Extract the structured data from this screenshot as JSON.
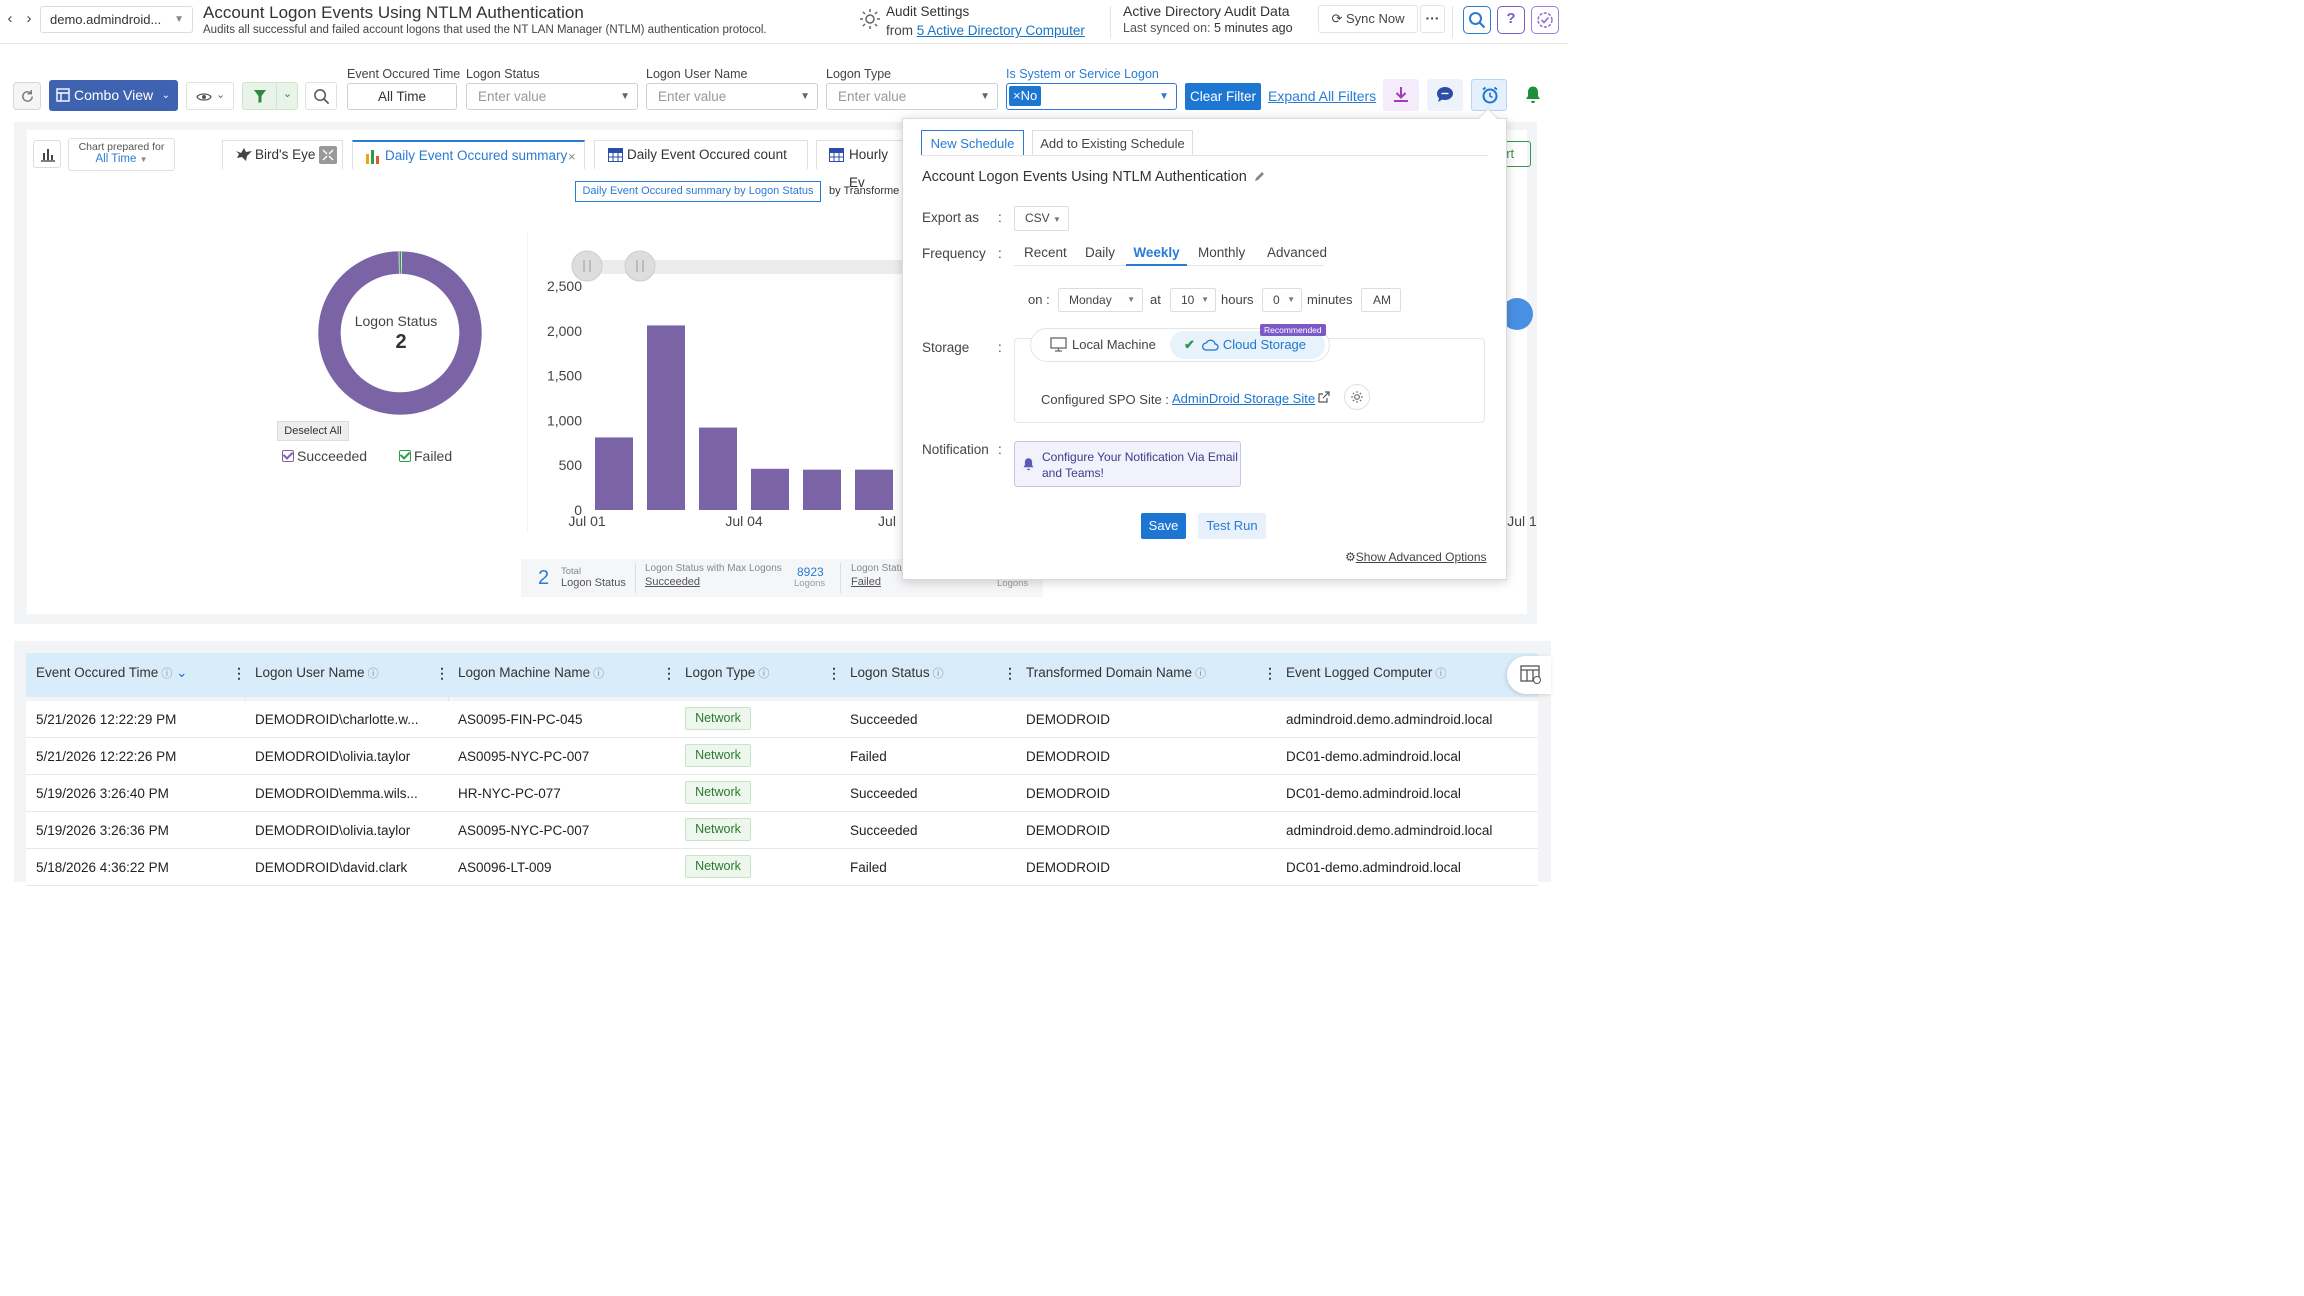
{
  "header": {
    "domain": "demo.admindroid...",
    "title": "Account Logon Events Using NTLM Authentication",
    "subtitle": "Audits all successful and failed account logons that used the NT LAN Manager (NTLM) authentication protocol.",
    "audit_settings_label": "Audit Settings",
    "audit_from_prefix": "from",
    "audit_from_link": "5 Active Directory Computer",
    "ad_audit_title": "Active Directory Audit Data",
    "last_synced_label": "Last synced on:",
    "last_synced_value": "5 minutes ago",
    "sync_now": "Sync Now",
    "more": "···",
    "help": "?"
  },
  "toolbar": {
    "combo_view": "Combo View",
    "filters": [
      {
        "label": "Event Occured Time",
        "value": "All Time"
      },
      {
        "label": "Logon Status",
        "placeholder": "Enter value"
      },
      {
        "label": "Logon User Name",
        "placeholder": "Enter value"
      },
      {
        "label": "Logon Type",
        "placeholder": "Enter value"
      },
      {
        "label": "Is System or Service Logon",
        "chip": "No"
      }
    ],
    "clear_filter": "Clear Filter",
    "expand_all": "Expand All Filters"
  },
  "chart_area": {
    "prepared_for_label": "Chart prepared for",
    "prepared_for_value": "All Time",
    "tabs": [
      "Bird's Eye",
      "Daily Event Occured summary",
      "Daily Event Occured count",
      "Hourly Ev"
    ],
    "subtab_active": "Daily Event Occured summary by Logon Status",
    "subtab_next": "by Transforme",
    "side_button": "art",
    "donut_title": "Logon Status",
    "donut_value": "2",
    "deselect_all": "Deselect All",
    "legend": [
      {
        "label": "Succeeded",
        "color": "#7b64a6"
      },
      {
        "label": "Failed",
        "color": "#2e9b4b"
      }
    ],
    "stats": {
      "total_num": "2",
      "total_small": "Total",
      "total_label": "Logon Status",
      "max_label": "Logon Status with Max Logons",
      "max_value": "Succeeded",
      "max_count": "8923",
      "max_unit": "Logons",
      "min_label": "Logon Statu",
      "min_value": "Failed",
      "min_unit": "Logons"
    }
  },
  "chart_data": [
    {
      "type": "pie",
      "title": "Logon Status",
      "categories": [
        "Succeeded",
        "Failed"
      ],
      "values": [
        8923,
        45
      ],
      "colors": [
        "#7b64a6",
        "#2e9b4b"
      ]
    },
    {
      "type": "bar",
      "categories": [
        "Jul 01",
        "Jul 02",
        "Jul 03",
        "Jul 04",
        "Jul 05",
        "Jul 06",
        "Jul 07"
      ],
      "values": [
        810,
        2060,
        920,
        460,
        450,
        450,
        430
      ],
      "ylim": [
        0,
        2500
      ],
      "yticks": [
        "0",
        "500",
        "1,000",
        "1,500",
        "2,000",
        "2,500"
      ],
      "xticks": [
        "Jul 01",
        "Jul 04",
        "Jul",
        "Jul 1"
      ],
      "color": "#7b64a6"
    }
  ],
  "schedule": {
    "tabs": [
      "New Schedule",
      "Add to Existing Schedule"
    ],
    "report_title": "Account Logon Events Using NTLM Authentication",
    "export_label": "Export as",
    "export_value": "CSV",
    "frequency_label": "Frequency",
    "frequencies": [
      "Recent",
      "Daily",
      "Weekly",
      "Monthly",
      "Advanced"
    ],
    "on_label": "on :",
    "day": "Monday",
    "at_label": "at",
    "hour": "10",
    "hours_label": "hours",
    "minute": "0",
    "minutes_label": "minutes",
    "ampm": "AM",
    "storage_label": "Storage",
    "local_machine": "Local Machine",
    "cloud_storage": "Cloud Storage",
    "recommended": "Recommended",
    "spo_label": "Configured SPO Site :",
    "spo_link": "AdminDroid Storage Site",
    "notification_label": "Notification",
    "notification_text": "Configure Your Notification Via Email and Teams!",
    "save": "Save",
    "test_run": "Test Run",
    "advanced": "Show Advanced Options",
    "colon": ":"
  },
  "table": {
    "columns": [
      "Event Occured Time",
      "Logon User Name",
      "Logon Machine Name",
      "Logon Type",
      "Logon Status",
      "Transformed Domain Name",
      "Event Logged Computer"
    ],
    "rows": [
      [
        "5/21/2026 12:22:29 PM",
        "DEMODROID\\charlotte.w...",
        "AS0095-FIN-PC-045",
        "Network",
        "Succeeded",
        "DEMODROID",
        "admindroid.demo.admindroid.local"
      ],
      [
        "5/21/2026 12:22:26 PM",
        "DEMODROID\\olivia.taylor",
        "AS0095-NYC-PC-007",
        "Network",
        "Failed",
        "DEMODROID",
        "DC01-demo.admindroid.local"
      ],
      [
        "5/19/2026 3:26:40 PM",
        "DEMODROID\\emma.wils...",
        "HR-NYC-PC-077",
        "Network",
        "Succeeded",
        "DEMODROID",
        "DC01-demo.admindroid.local"
      ],
      [
        "5/19/2026 3:26:36 PM",
        "DEMODROID\\olivia.taylor",
        "AS0095-NYC-PC-007",
        "Network",
        "Succeeded",
        "DEMODROID",
        "admindroid.demo.admindroid.local"
      ],
      [
        "5/18/2026 4:36:22 PM",
        "DEMODROID\\david.clark",
        "AS0096-LT-009",
        "Network",
        "Failed",
        "DEMODROID",
        "DC01-demo.admindroid.local"
      ]
    ]
  }
}
